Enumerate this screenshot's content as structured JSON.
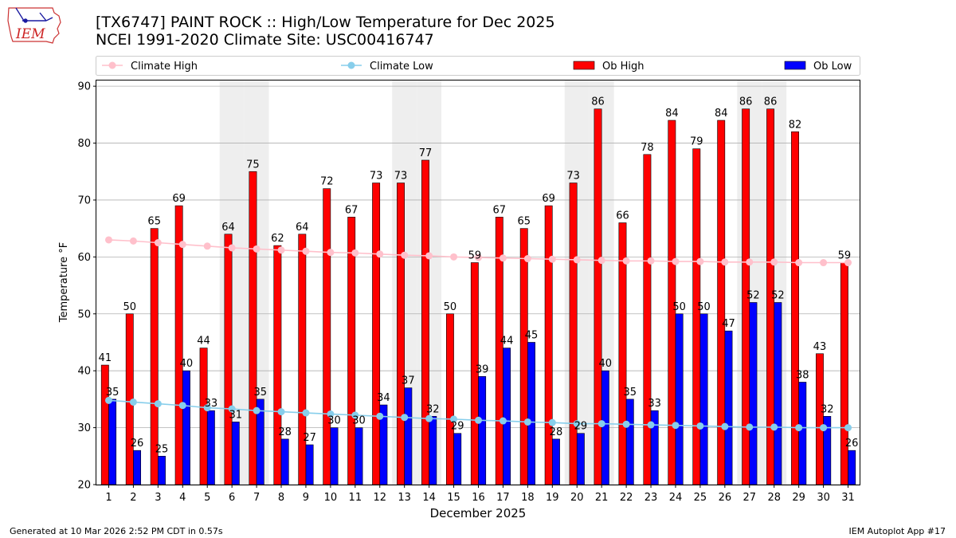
{
  "header": {
    "title_line1": "[TX6747] PAINT ROCK :: High/Low Temperature for Dec 2025",
    "title_line2": "NCEI 1991-2020 Climate Site: USC00416747"
  },
  "logo": {
    "text": "IEM"
  },
  "footer": {
    "left": "Generated at 10 Mar 2026 2:52 PM CDT in 0.57s",
    "right": "IEM Autoplot App #17"
  },
  "chart_data": {
    "type": "bar",
    "xlabel": "December 2025",
    "ylabel": "Temperature °F",
    "ylim": [
      20,
      91
    ],
    "yticks": [
      20,
      30,
      40,
      50,
      60,
      70,
      80,
      90
    ],
    "grid": "horizontal",
    "legend_position": "top",
    "categories": [
      "1",
      "2",
      "3",
      "4",
      "5",
      "6",
      "7",
      "8",
      "9",
      "10",
      "11",
      "12",
      "13",
      "14",
      "15",
      "16",
      "17",
      "18",
      "19",
      "20",
      "21",
      "22",
      "23",
      "24",
      "25",
      "26",
      "27",
      "28",
      "29",
      "30",
      "31"
    ],
    "weekend_shading_days": [
      6,
      7,
      13,
      14,
      20,
      21,
      27,
      28
    ],
    "series": [
      {
        "name": "Ob High",
        "kind": "bar",
        "color": "#ff0000",
        "values": [
          41,
          50,
          65,
          69,
          44,
          64,
          75,
          62,
          64,
          72,
          67,
          73,
          73,
          77,
          50,
          59,
          67,
          65,
          69,
          73,
          86,
          66,
          78,
          84,
          79,
          84,
          86,
          86,
          82,
          43,
          59
        ],
        "labels": [
          "41",
          "50",
          "65",
          "69",
          "44",
          "64",
          "75",
          "62",
          "64",
          "72",
          "67",
          "73",
          "73",
          "77",
          "50",
          "59",
          "67",
          "65",
          "69",
          "73",
          "86",
          "66",
          "78",
          "84",
          "79",
          "84",
          "86",
          "86",
          "82",
          "43",
          "59"
        ]
      },
      {
        "name": "Ob Low",
        "kind": "bar",
        "color": "#0000ff",
        "values": [
          35,
          26,
          25,
          40,
          33,
          31,
          35,
          28,
          27,
          30,
          30,
          34,
          37,
          32,
          29,
          39,
          44,
          45,
          28,
          29,
          40,
          35,
          33,
          50,
          50,
          47,
          52,
          52,
          38,
          32,
          26
        ],
        "labels": [
          "35",
          "26",
          "25",
          "40",
          "33",
          "31",
          "35",
          "28",
          "27",
          "30",
          "30",
          "34",
          "37",
          "32",
          "29",
          "39",
          "44",
          "45",
          "28",
          "29",
          "40",
          "35",
          "33",
          "50",
          "50",
          "47",
          "52",
          "52",
          "38",
          "32",
          "26"
        ]
      },
      {
        "name": "Climate High",
        "kind": "line",
        "color": "#ffc0cb",
        "values": [
          63.0,
          62.8,
          62.5,
          62.2,
          61.9,
          61.6,
          61.4,
          61.2,
          61.0,
          60.8,
          60.7,
          60.5,
          60.3,
          60.2,
          60.0,
          59.9,
          59.8,
          59.7,
          59.6,
          59.5,
          59.4,
          59.3,
          59.3,
          59.2,
          59.2,
          59.1,
          59.1,
          59.1,
          59.0,
          59.0,
          59.0
        ]
      },
      {
        "name": "Climate Low",
        "kind": "line",
        "color": "#87ceeb",
        "values": [
          34.8,
          34.5,
          34.2,
          33.9,
          33.5,
          33.3,
          33.0,
          32.8,
          32.6,
          32.4,
          32.2,
          32.0,
          31.8,
          31.6,
          31.5,
          31.3,
          31.2,
          31.0,
          30.9,
          30.7,
          30.7,
          30.6,
          30.5,
          30.4,
          30.3,
          30.2,
          30.1,
          30.1,
          30.0,
          30.0,
          30.0
        ]
      }
    ],
    "legend_order": [
      "Climate High",
      "Climate Low",
      "Ob High",
      "Ob Low"
    ]
  }
}
